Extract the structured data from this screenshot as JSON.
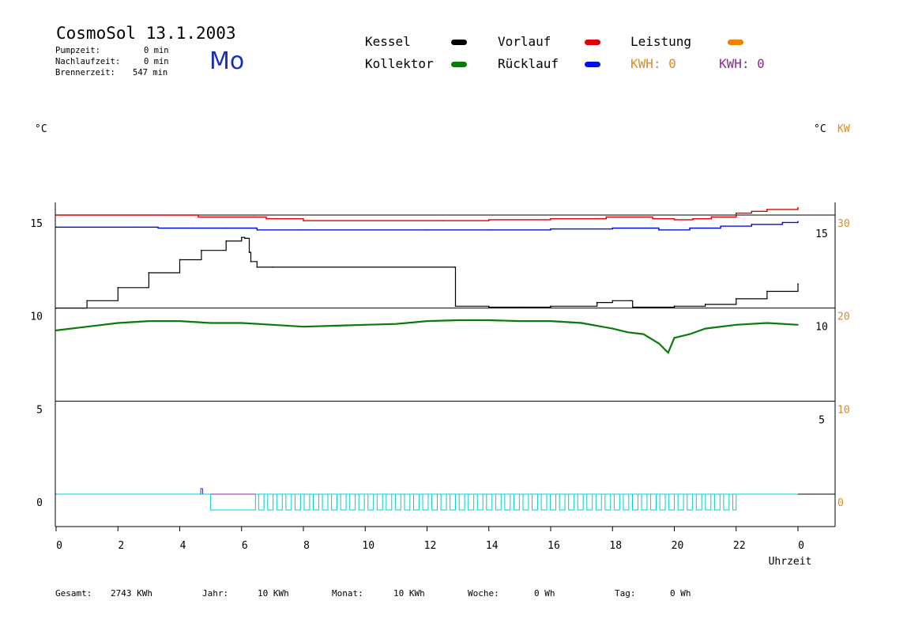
{
  "header": {
    "title": "CosmoSol 13.1.2003",
    "day": "Mo",
    "stats": [
      {
        "label": "Pumpzeit:",
        "value": "0 min"
      },
      {
        "label": "Nachlaufzeit:",
        "value": "0 min"
      },
      {
        "label": "Brennerzeit:",
        "value": "547 min"
      }
    ]
  },
  "legend": {
    "kessel": "Kessel",
    "vorlauf": "Vorlauf",
    "leistung": "Leistung",
    "kollektor": "Kollektor",
    "ruecklauf": "Rücklauf",
    "kwh_orange": "KWH: 0",
    "kwh_purple": "KWH: 0"
  },
  "units": {
    "left": "°C",
    "right_c": "°C",
    "right_kw": "KW"
  },
  "footer": {
    "gesamt_label": "Gesamt:",
    "gesamt_value": "2743 KWh",
    "jahr_label": "Jahr:",
    "jahr_value": "10 KWh",
    "monat_label": "Monat:",
    "monat_value": "10 KWh",
    "woche_label": "Woche:",
    "woche_value": "0 Wh",
    "tag_label": "Tag:",
    "tag_value": "0 Wh"
  },
  "colors": {
    "kessel": "#000000",
    "vorlauf": "#e00000",
    "ruecklauf": "#0010e0",
    "kollektor": "#0a7a0a",
    "leistung": "#f08000",
    "kwh_orange": "#e08a1a",
    "kwh_purple": "#8a2a9a",
    "pump": "#00d0d0"
  },
  "chart_data": {
    "type": "line",
    "xlabel": "Uhrzeit",
    "x_ticks": [
      "0",
      "2",
      "4",
      "6",
      "8",
      "10",
      "12",
      "14",
      "16",
      "18",
      "20",
      "22",
      "0"
    ],
    "xlim": [
      0,
      24
    ],
    "y_left_ticks": [
      "15",
      "10",
      "5",
      "0"
    ],
    "y_right_c_ticks": [
      "15",
      "10",
      "5"
    ],
    "y_right_kw_ticks": [
      "30",
      "20",
      "10",
      "0"
    ],
    "ylim_left": [
      -1.5,
      16.5
    ],
    "series": [
      {
        "name": "Vorlauf",
        "color": "#e00000",
        "x": [
          0,
          4.4,
          4.6,
          6.4,
          6.8,
          7,
          8,
          12.5,
          14,
          16,
          17.8,
          19.3,
          20,
          20.6,
          21.2,
          22,
          22.5,
          23,
          24
        ],
        "y": [
          15.0,
          15.0,
          14.9,
          14.9,
          14.8,
          14.8,
          14.7,
          14.7,
          14.75,
          14.8,
          14.9,
          14.8,
          14.75,
          14.8,
          14.9,
          15.1,
          15.2,
          15.3,
          15.4
        ]
      },
      {
        "name": "Rücklauf",
        "color": "#0010e0",
        "x": [
          0,
          2.5,
          3.3,
          5.5,
          6.5,
          8,
          12,
          14,
          16,
          18,
          19.5,
          20.5,
          21.5,
          22.5,
          23.5,
          24
        ],
        "y": [
          14.35,
          14.35,
          14.3,
          14.3,
          14.2,
          14.2,
          14.2,
          14.2,
          14.25,
          14.3,
          14.2,
          14.3,
          14.4,
          14.5,
          14.6,
          14.65
        ]
      },
      {
        "name": "Kessel",
        "color": "#000000",
        "x": [
          0,
          1,
          2,
          3,
          4,
          4.7,
          5.5,
          6.0,
          6.1,
          6.25,
          6.3,
          6.5,
          7.0,
          12.9,
          12.92,
          14.0,
          15.0,
          16.0,
          17.5,
          18.0,
          18.6,
          18.65,
          20.0,
          21.0,
          22.0,
          23.0,
          24.0
        ],
        "y": [
          10.0,
          10.4,
          11.1,
          11.9,
          12.6,
          13.1,
          13.6,
          13.8,
          13.75,
          13.0,
          12.5,
          12.2,
          12.2,
          12.2,
          10.1,
          10.05,
          10.05,
          10.1,
          10.3,
          10.4,
          10.4,
          10.05,
          10.1,
          10.2,
          10.5,
          10.9,
          11.3
        ]
      },
      {
        "name": "Kollektor",
        "color": "#0a7a0a",
        "x": [
          0,
          1,
          2,
          3,
          4,
          5,
          6,
          7,
          8,
          9,
          10,
          11,
          12,
          13,
          14,
          15,
          16,
          17,
          18,
          18.5,
          19,
          19.5,
          19.8,
          20,
          20.5,
          21,
          22,
          23,
          24
        ],
        "y": [
          8.8,
          9.0,
          9.2,
          9.3,
          9.3,
          9.2,
          9.2,
          9.1,
          9.0,
          9.05,
          9.1,
          9.15,
          9.3,
          9.35,
          9.35,
          9.3,
          9.3,
          9.2,
          8.9,
          8.7,
          8.6,
          8.1,
          7.6,
          8.4,
          8.6,
          8.9,
          9.1,
          9.2,
          9.1
        ]
      }
    ],
    "pump_pulses": {
      "name": "Pumpe",
      "color": "#00d0d0",
      "block_start": 5.0,
      "block_end": 6.45,
      "pulse_start": 6.55,
      "pulse_end": 22.0,
      "pulse_period": 0.295
    }
  }
}
